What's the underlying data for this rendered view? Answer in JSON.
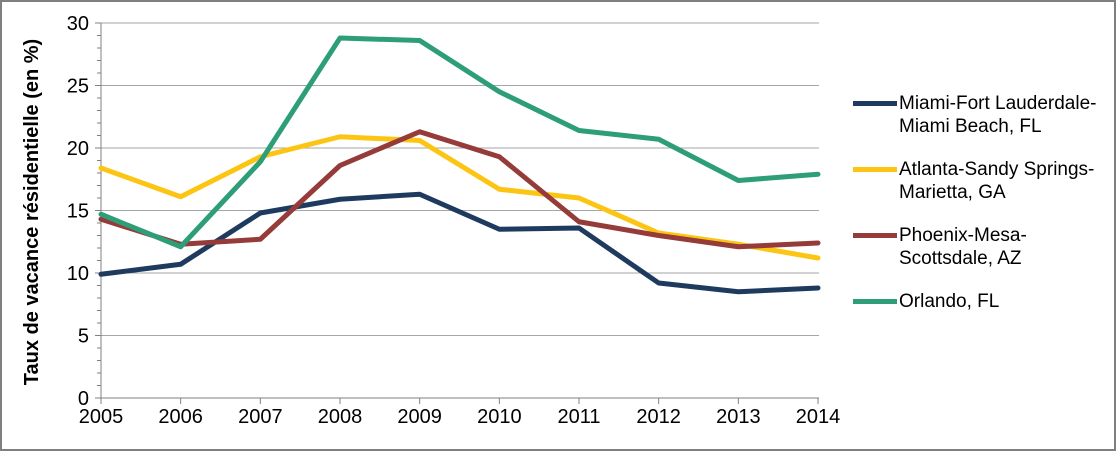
{
  "frame": {
    "border_color": "#7F7F7F",
    "background_color": "#FFFFFF",
    "axis_color": "#808080",
    "gridline_color": "#A6A6A6",
    "text_color": "#000000"
  },
  "chart_data": {
    "type": "line",
    "title": "",
    "xlabel": "",
    "ylabel": "Taux de vacance résidentielle (en %)",
    "categories": [
      "2005",
      "2006",
      "2007",
      "2008",
      "2009",
      "2010",
      "2011",
      "2012",
      "2013",
      "2014"
    ],
    "ylim": [
      0,
      30
    ],
    "ytick_interval": 5,
    "y_minor_tick_interval": 1,
    "y_tick_labels": [
      "0",
      "5",
      "10",
      "15",
      "20",
      "25",
      "30"
    ],
    "grid": true,
    "legend_position": "right",
    "series": [
      {
        "name": "Miami-Fort Lauderdale-Miami Beach, FL",
        "legend_lines": [
          "Miami-Fort Lauderdale-",
          "Miami Beach, FL"
        ],
        "color": "#1F3A5F",
        "values": [
          9.9,
          10.7,
          14.8,
          15.9,
          16.3,
          13.5,
          13.6,
          9.2,
          8.5,
          8.8
        ]
      },
      {
        "name": "Atlanta-Sandy Springs-Marietta, GA",
        "legend_lines": [
          "Atlanta-Sandy Springs-",
          "Marietta, GA"
        ],
        "color": "#FDC513",
        "values": [
          18.4,
          16.1,
          19.3,
          20.9,
          20.6,
          16.7,
          16.0,
          13.2,
          12.3,
          11.2
        ]
      },
      {
        "name": "Phoenix-Mesa-Scottsdale, AZ",
        "legend_lines": [
          "Phoenix-Mesa-",
          "Scottsdale, AZ"
        ],
        "color": "#953B39",
        "values": [
          14.3,
          12.3,
          12.7,
          18.6,
          21.3,
          19.3,
          14.1,
          13.0,
          12.1,
          12.4
        ]
      },
      {
        "name": "Orlando, FL",
        "legend_lines": [
          "Orlando, FL"
        ],
        "color": "#2E9E78",
        "values": [
          14.7,
          12.1,
          18.9,
          28.8,
          28.6,
          24.5,
          21.4,
          20.7,
          17.4,
          17.9
        ]
      }
    ]
  }
}
